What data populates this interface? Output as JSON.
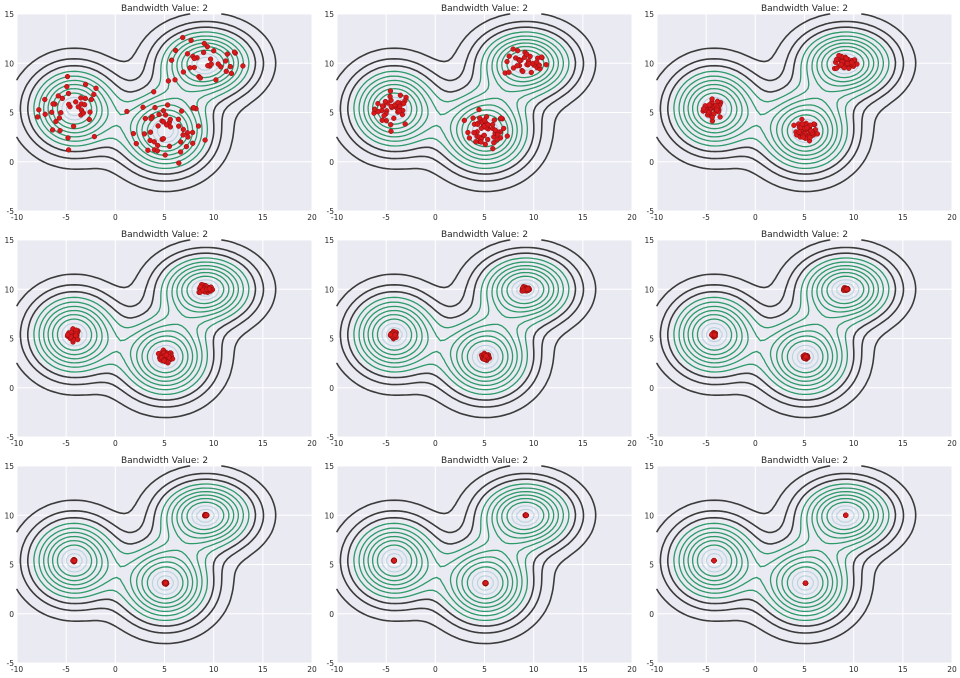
{
  "figure": {
    "colors": {
      "plot_bg": "#eaeaf2",
      "grid": "#ffffff",
      "points": "#d7191c",
      "point_edge": "#8c0c0c",
      "contour_outer": "#3b3b3b",
      "contour_inner": "#2e9a6a",
      "contour_center": "#b9d3e0"
    }
  },
  "chart_data": [
    {
      "type": "scatter",
      "title": "Bandwidth Value: 2",
      "xlim": [
        -10,
        20
      ],
      "ylim": [
        -5,
        15
      ],
      "xticks": [
        -10,
        -5,
        0,
        5,
        10,
        15,
        20
      ],
      "yticks": [
        -5,
        0,
        5,
        10,
        15
      ],
      "spread": 1.0,
      "grid": true
    },
    {
      "type": "scatter",
      "title": "Bandwidth Value: 2",
      "xlim": [
        -10,
        20
      ],
      "ylim": [
        -5,
        15
      ],
      "xticks": [
        -10,
        -5,
        0,
        5,
        10,
        15,
        20
      ],
      "yticks": [
        -5,
        0,
        5,
        10,
        15
      ],
      "spread": 0.55,
      "grid": true
    },
    {
      "type": "scatter",
      "title": "Bandwidth Value: 2",
      "xlim": [
        -10,
        20
      ],
      "ylim": [
        -5,
        15
      ],
      "xticks": [
        -10,
        -5,
        0,
        5,
        10,
        15,
        20
      ],
      "yticks": [
        -5,
        0,
        5,
        10,
        15
      ],
      "spread": 0.3,
      "grid": true
    },
    {
      "type": "scatter",
      "title": "Bandwidth Value: 2",
      "xlim": [
        -10,
        20
      ],
      "ylim": [
        -5,
        15
      ],
      "xticks": [
        -10,
        -5,
        0,
        5,
        10,
        15,
        20
      ],
      "yticks": [
        -5,
        0,
        5,
        10,
        15
      ],
      "spread": 0.18,
      "grid": true
    },
    {
      "type": "scatter",
      "title": "Bandwidth Value: 2",
      "xlim": [
        -10,
        20
      ],
      "ylim": [
        -5,
        15
      ],
      "xticks": [
        -10,
        -5,
        0,
        5,
        10,
        15,
        20
      ],
      "yticks": [
        -5,
        0,
        5,
        10,
        15
      ],
      "spread": 0.1,
      "grid": true
    },
    {
      "type": "scatter",
      "title": "Bandwidth Value: 2",
      "xlim": [
        -10,
        20
      ],
      "ylim": [
        -5,
        15
      ],
      "xticks": [
        -10,
        -5,
        0,
        5,
        10,
        15,
        20
      ],
      "yticks": [
        -5,
        0,
        5,
        10,
        15
      ],
      "spread": 0.06,
      "grid": true
    },
    {
      "type": "scatter",
      "title": "Bandwidth Value: 2",
      "xlim": [
        -10,
        20
      ],
      "ylim": [
        -5,
        15
      ],
      "xticks": [
        -10,
        -5,
        0,
        5,
        10,
        15,
        20
      ],
      "yticks": [
        -5,
        0,
        5,
        10,
        15
      ],
      "spread": 0.03,
      "grid": true
    },
    {
      "type": "scatter",
      "title": "Bandwidth Value: 2",
      "xlim": [
        -10,
        20
      ],
      "ylim": [
        -5,
        15
      ],
      "xticks": [
        -10,
        -5,
        0,
        5,
        10,
        15,
        20
      ],
      "yticks": [
        -5,
        0,
        5,
        10,
        15
      ],
      "spread": 0.015,
      "grid": true
    },
    {
      "type": "scatter",
      "title": "Bandwidth Value: 2",
      "xlim": [
        -10,
        20
      ],
      "ylim": [
        -5,
        15
      ],
      "xticks": [
        -10,
        -5,
        0,
        5,
        10,
        15,
        20
      ],
      "yticks": [
        -5,
        0,
        5,
        10,
        15
      ],
      "spread": 0.0,
      "grid": true
    }
  ],
  "clusters": [
    {
      "name": "",
      "cx": -4.2,
      "cy": 5.4,
      "sx": 1.8,
      "sy": 1.6
    },
    {
      "name": "",
      "cx": 5.1,
      "cy": 3.1,
      "sx": 1.9,
      "sy": 1.6
    },
    {
      "name": "",
      "cx": 9.2,
      "cy": 10.0,
      "sx": 2.0,
      "sy": 1.2
    }
  ]
}
